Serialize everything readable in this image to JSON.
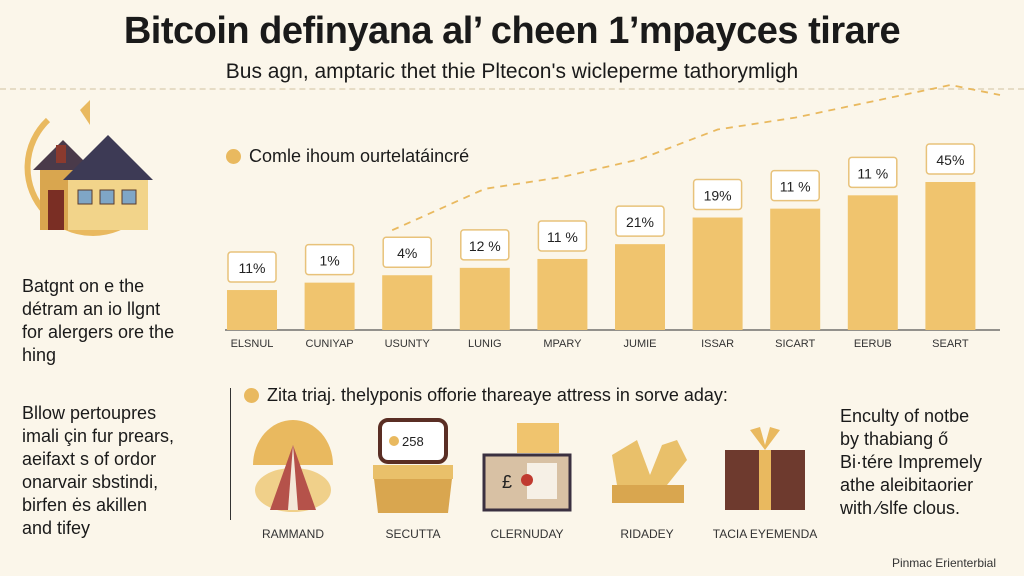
{
  "header": {
    "title": "Bitcoin definyana al’ cheen 1’mpayces tirare",
    "subtitle": "Bus agn, amptaric thet thie Pltecon's wicleperme tathorymligh"
  },
  "left_text_1": [
    "Batgnt on e the",
    "détram an io llgnt",
    "for alergers ore the",
    "hing"
  ],
  "left_text_2": [
    "Bllow pertoupres",
    "imali çin fur prears,",
    "aeifaxt s of ordor",
    "onarvair sbstindi,",
    "birfen ės akillen",
    "and tifey"
  ],
  "right_text": [
    "Enculty of notbe",
    "by thabiang ő",
    "Bi·tére Impremely",
    "athe aleibitaorier",
    "with ⁄slfe clous."
  ],
  "section2": {
    "title": "Zita triaj. thelyponis offorie thareaye attress in sorve aday:",
    "items": [
      {
        "label": "RAMMAND",
        "icon": "umbrella-tent-icon"
      },
      {
        "label": "SECUTTA",
        "icon": "treasure-box-icon",
        "badge": "258"
      },
      {
        "label": "CLERNUDAY",
        "icon": "wallet-icon"
      },
      {
        "label": "RIDADEY",
        "icon": "broken-crate-icon"
      },
      {
        "label": "TACIA EYEMENDA",
        "icon": "gift-box-icon"
      }
    ]
  },
  "footer": "Pinmac Erienterbial",
  "colors": {
    "bar": "#f0c46e",
    "accent": "#e9b95f",
    "label_border": "#e8c27a"
  },
  "chart_data": {
    "type": "bar",
    "title": "Comle ihoum ourtelatáincré",
    "categories": [
      "ELSNUL",
      "CUNIYAP",
      "USUNTY",
      "LUNIG",
      "MPARY",
      "JUMIE",
      "ISSAR",
      "SICART",
      "EERUB",
      "SEART"
    ],
    "data_labels": [
      "11%",
      "1%",
      "4%",
      "12 %",
      "11 %",
      "21%",
      "19%",
      "11 %",
      "11 %",
      "45%"
    ],
    "values": [
      11,
      1,
      4,
      12,
      11,
      21,
      19,
      11,
      11,
      45
    ],
    "bar_levels": [
      27,
      32,
      37,
      42,
      48,
      58,
      76,
      82,
      91,
      100
    ],
    "trend_line": "dashed",
    "grid": false
  }
}
